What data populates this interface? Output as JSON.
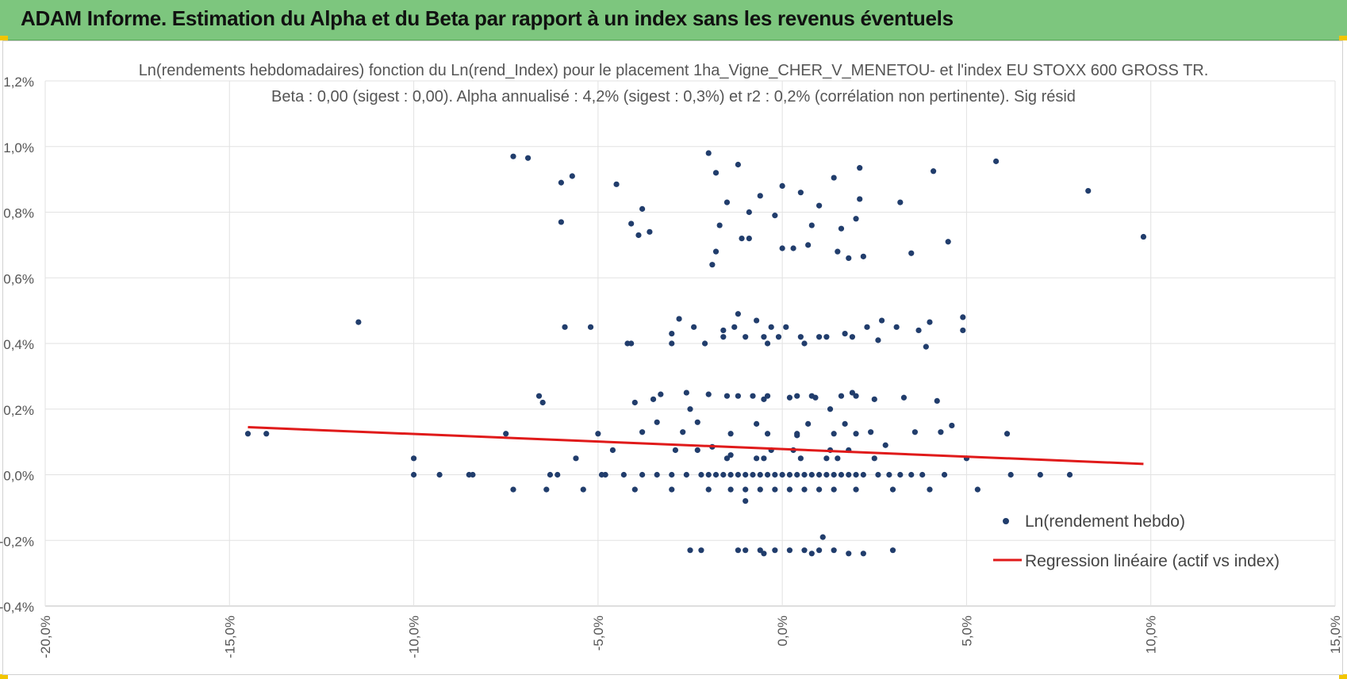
{
  "banner": {
    "title": "ADAM Informe. Estimation du Alpha et du Beta par rapport à un index sans les revenus éventuels",
    "color": "#7dc67e",
    "corner_color": "#f2c500"
  },
  "chart_data": {
    "type": "scatter",
    "title": "Ln(rendements hebdomadaires) fonction du Ln(rend_Index) pour le placement 1ha_Vigne_CHER_V_MENETOU- et l'index EU STOXX 600 GROSS TR.",
    "subtitle": "Beta : 0,00 (sigest : 0,00). Alpha annualisé : 4,2% (sigest : 0,3%) et r2 : 0,2% (corrélation non pertinente). Sig résid",
    "xlabel": "",
    "ylabel": "",
    "xlim": [
      -20,
      15
    ],
    "ylim": [
      -0.4,
      1.2
    ],
    "x_ticks": [
      "-20,0%",
      "-15,0%",
      "-10,0%",
      "-5,0%",
      "0,0%",
      "5,0%",
      "10,0%",
      "15,0%"
    ],
    "y_ticks": [
      "1,2%",
      "1,0%",
      "0,8%",
      "0,6%",
      "0,4%",
      "0,2%",
      "0,0%",
      "-0,2%",
      "-0,4%"
    ],
    "grid": true,
    "legend_position": "bottom-right",
    "series": [
      {
        "name": "Ln(rendement hebdo)",
        "type": "scatter",
        "color": "#213d6c",
        "points": [
          [
            -14.5,
            0.125
          ],
          [
            -14.0,
            0.125
          ],
          [
            -11.5,
            0.465
          ],
          [
            -10.0,
            0.0
          ],
          [
            -10.0,
            0.05
          ],
          [
            -9.3,
            0.0
          ],
          [
            -8.5,
            0.0
          ],
          [
            -8.4,
            0.0
          ],
          [
            -7.5,
            0.125
          ],
          [
            -7.3,
            -0.045
          ],
          [
            -7.3,
            0.97
          ],
          [
            -6.9,
            0.965
          ],
          [
            -6.6,
            0.24
          ],
          [
            -6.5,
            0.22
          ],
          [
            -6.4,
            -0.045
          ],
          [
            -6.3,
            0.0
          ],
          [
            -6.1,
            0.0
          ],
          [
            -6.0,
            0.77
          ],
          [
            -6.0,
            0.89
          ],
          [
            -5.9,
            0.45
          ],
          [
            -5.7,
            0.91
          ],
          [
            -5.6,
            0.05
          ],
          [
            -5.4,
            -0.045
          ],
          [
            -5.2,
            0.45
          ],
          [
            -5.0,
            0.125
          ],
          [
            -4.9,
            0.0
          ],
          [
            -4.8,
            0.0
          ],
          [
            -4.6,
            0.075
          ],
          [
            -4.5,
            0.885
          ],
          [
            -4.3,
            0.0
          ],
          [
            -4.2,
            0.4
          ],
          [
            -4.1,
            0.4
          ],
          [
            -4.1,
            0.765
          ],
          [
            -4.0,
            0.22
          ],
          [
            -3.9,
            0.73
          ],
          [
            -3.8,
            0.81
          ],
          [
            -3.8,
            0.13
          ],
          [
            -3.6,
            0.74
          ],
          [
            -3.5,
            0.23
          ],
          [
            -3.4,
            0.16
          ],
          [
            -3.3,
            0.245
          ],
          [
            -3.0,
            0.4
          ],
          [
            -3.0,
            0.43
          ],
          [
            -2.9,
            0.075
          ],
          [
            -2.8,
            0.475
          ],
          [
            -2.7,
            0.13
          ],
          [
            -2.6,
            0.25
          ],
          [
            -2.5,
            0.2
          ],
          [
            -2.5,
            -0.23
          ],
          [
            -2.4,
            0.45
          ],
          [
            -2.3,
            0.16
          ],
          [
            -2.2,
            -0.23
          ],
          [
            -2.1,
            0.4
          ],
          [
            -2.0,
            0.98
          ],
          [
            -2.0,
            0.245
          ],
          [
            -1.9,
            0.085
          ],
          [
            -1.9,
            0.64
          ],
          [
            -1.8,
            0.92
          ],
          [
            -1.8,
            0.68
          ],
          [
            -1.7,
            0.76
          ],
          [
            -1.6,
            0.44
          ],
          [
            -1.5,
            0.83
          ],
          [
            -1.5,
            0.24
          ],
          [
            -1.4,
            0.06
          ],
          [
            -1.3,
            0.45
          ],
          [
            -1.2,
            0.945
          ],
          [
            -1.2,
            0.49
          ],
          [
            -1.1,
            0.72
          ],
          [
            -1.0,
            0.42
          ],
          [
            -1.0,
            -0.08
          ],
          [
            -0.9,
            0.8
          ],
          [
            -0.9,
            0.72
          ],
          [
            -0.8,
            0.24
          ],
          [
            -0.7,
            0.47
          ],
          [
            -0.7,
            0.05
          ],
          [
            -0.6,
            0.85
          ],
          [
            -0.5,
            0.23
          ],
          [
            -0.4,
            0.4
          ],
          [
            -0.3,
            0.45
          ],
          [
            -0.2,
            0.79
          ],
          [
            -0.1,
            0.42
          ],
          [
            0.0,
            0.88
          ],
          [
            0.0,
            0.69
          ],
          [
            0.1,
            0.45
          ],
          [
            0.2,
            0.235
          ],
          [
            0.3,
            0.69
          ],
          [
            0.4,
            0.12
          ],
          [
            0.5,
            0.86
          ],
          [
            0.6,
            0.4
          ],
          [
            0.7,
            0.7
          ],
          [
            0.8,
            0.76
          ],
          [
            0.9,
            0.235
          ],
          [
            1.0,
            0.82
          ],
          [
            1.0,
            0.42
          ],
          [
            1.1,
            -0.19
          ],
          [
            1.2,
            0.05
          ],
          [
            1.3,
            0.2
          ],
          [
            1.4,
            0.905
          ],
          [
            1.5,
            0.68
          ],
          [
            1.6,
            0.75
          ],
          [
            1.7,
            0.43
          ],
          [
            1.8,
            0.66
          ],
          [
            1.9,
            0.25
          ],
          [
            2.0,
            0.78
          ],
          [
            2.1,
            0.935
          ],
          [
            2.1,
            0.84
          ],
          [
            2.2,
            0.665
          ],
          [
            2.3,
            0.45
          ],
          [
            2.4,
            0.13
          ],
          [
            2.5,
            0.23
          ],
          [
            2.6,
            0.41
          ],
          [
            2.7,
            0.47
          ],
          [
            2.8,
            0.09
          ],
          [
            2.9,
            0.0
          ],
          [
            3.0,
            -0.23
          ],
          [
            3.1,
            0.45
          ],
          [
            3.2,
            0.83
          ],
          [
            3.3,
            0.235
          ],
          [
            3.5,
            0.675
          ],
          [
            3.6,
            0.13
          ],
          [
            3.7,
            0.44
          ],
          [
            3.8,
            0.0
          ],
          [
            3.9,
            0.39
          ],
          [
            4.0,
            0.465
          ],
          [
            4.1,
            0.925
          ],
          [
            4.2,
            0.225
          ],
          [
            4.3,
            0.13
          ],
          [
            4.4,
            0.0
          ],
          [
            4.5,
            0.71
          ],
          [
            4.6,
            0.15
          ],
          [
            4.9,
            0.48
          ],
          [
            4.9,
            0.44
          ],
          [
            5.0,
            0.05
          ],
          [
            5.3,
            -0.045
          ],
          [
            5.8,
            0.955
          ],
          [
            6.1,
            0.125
          ],
          [
            6.2,
            0.0
          ],
          [
            7.0,
            0.0
          ],
          [
            7.8,
            0.0
          ],
          [
            8.3,
            0.865
          ],
          [
            9.8,
            0.725
          ],
          [
            -1.8,
            0.0
          ],
          [
            -1.6,
            0.0
          ],
          [
            -1.4,
            0.0
          ],
          [
            -1.2,
            0.0
          ],
          [
            -0.8,
            0.0
          ],
          [
            -0.6,
            0.0
          ],
          [
            -0.4,
            0.0
          ],
          [
            -0.2,
            0.0
          ],
          [
            0.2,
            0.0
          ],
          [
            0.4,
            0.0
          ],
          [
            0.6,
            0.0
          ],
          [
            0.8,
            0.0
          ],
          [
            1.2,
            0.0
          ],
          [
            1.4,
            0.0
          ],
          [
            1.6,
            0.0
          ],
          [
            1.8,
            0.0
          ],
          [
            -2.6,
            0.0
          ],
          [
            -2.2,
            0.0
          ],
          [
            2.2,
            0.0
          ],
          [
            2.6,
            0.0
          ],
          [
            3.2,
            0.0
          ],
          [
            3.5,
            0.0
          ],
          [
            -3.0,
            0.0
          ],
          [
            -3.4,
            0.0
          ],
          [
            -3.8,
            0.0
          ],
          [
            0.0,
            0.0
          ],
          [
            1.0,
            0.0
          ],
          [
            -1.0,
            0.0
          ],
          [
            2.0,
            0.0
          ],
          [
            -2.0,
            0.0
          ],
          [
            0.5,
            0.05
          ],
          [
            -0.5,
            0.05
          ],
          [
            1.5,
            0.05
          ],
          [
            -1.5,
            0.05
          ],
          [
            2.5,
            0.05
          ],
          [
            0.3,
            0.075
          ],
          [
            -0.3,
            0.075
          ],
          [
            1.3,
            0.075
          ],
          [
            -2.3,
            0.075
          ],
          [
            1.8,
            0.075
          ],
          [
            0.4,
            0.125
          ],
          [
            -0.4,
            0.125
          ],
          [
            1.4,
            0.125
          ],
          [
            -1.4,
            0.125
          ],
          [
            2.0,
            0.125
          ],
          [
            0.7,
            0.155
          ],
          [
            -0.7,
            0.155
          ],
          [
            1.7,
            0.155
          ],
          [
            -0.2,
            -0.045
          ],
          [
            0.2,
            -0.045
          ],
          [
            0.6,
            -0.045
          ],
          [
            1.0,
            -0.045
          ],
          [
            -0.6,
            -0.045
          ],
          [
            -1.0,
            -0.045
          ],
          [
            1.4,
            -0.045
          ],
          [
            -1.4,
            -0.045
          ],
          [
            -2.0,
            -0.045
          ],
          [
            2.0,
            -0.045
          ],
          [
            -3.0,
            -0.045
          ],
          [
            3.0,
            -0.045
          ],
          [
            -4.0,
            -0.045
          ],
          [
            4.0,
            -0.045
          ],
          [
            -0.4,
            0.24
          ],
          [
            0.4,
            0.24
          ],
          [
            0.8,
            0.24
          ],
          [
            -1.2,
            0.24
          ],
          [
            1.6,
            0.24
          ],
          [
            2.0,
            0.24
          ],
          [
            -0.5,
            0.42
          ],
          [
            0.5,
            0.42
          ],
          [
            1.2,
            0.42
          ],
          [
            -1.6,
            0.42
          ],
          [
            1.9,
            0.42
          ],
          [
            -0.2,
            -0.23
          ],
          [
            0.2,
            -0.23
          ],
          [
            0.6,
            -0.23
          ],
          [
            1.0,
            -0.23
          ],
          [
            -0.6,
            -0.23
          ],
          [
            1.4,
            -0.23
          ],
          [
            -1.0,
            -0.23
          ],
          [
            -0.5,
            -0.24
          ],
          [
            0.8,
            -0.24
          ],
          [
            1.8,
            -0.24
          ],
          [
            -1.2,
            -0.23
          ],
          [
            2.2,
            -0.24
          ]
        ]
      },
      {
        "name": "Regression linéaire (actif vs index)",
        "type": "line",
        "color": "#e01a1a",
        "points": [
          [
            -14.5,
            0.145
          ],
          [
            9.8,
            0.033
          ]
        ]
      }
    ]
  }
}
